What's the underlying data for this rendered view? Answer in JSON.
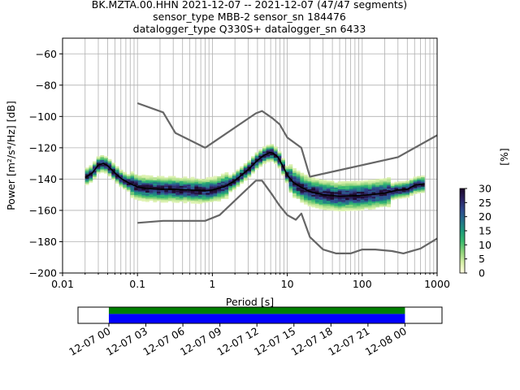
{
  "chart_data": [
    {
      "type": "heatmap",
      "title_lines": [
        "BK.MZTA.00.HHN   2021-12-07 -- 2021-12-07  (47/47 segments)",
        "sensor_type MBB-2 sensor_sn 184476",
        "datalogger_type Q330S+ datalogger_sn 6433"
      ],
      "xlabel": "Period [s]",
      "ylabel": "Power [m²/s⁴/Hz] [dB]",
      "xscale": "log",
      "xlim": [
        0.01,
        1000
      ],
      "ylim": [
        -200,
        -50
      ],
      "xticks": [
        {
          "value": 0.01,
          "label": "0.01"
        },
        {
          "value": 0.1,
          "label": "0.1"
        },
        {
          "value": 1,
          "label": "1"
        },
        {
          "value": 10,
          "label": "10"
        },
        {
          "value": 100,
          "label": "100"
        },
        {
          "value": 1000,
          "label": "1000"
        }
      ],
      "yticks": [
        {
          "value": -60,
          "label": "−60"
        },
        {
          "value": -80,
          "label": "−80"
        },
        {
          "value": -100,
          "label": "−100"
        },
        {
          "value": -120,
          "label": "−120"
        },
        {
          "value": -140,
          "label": "−140"
        },
        {
          "value": -160,
          "label": "−160"
        },
        {
          "value": -180,
          "label": "−180"
        },
        {
          "value": -200,
          "label": "−200"
        }
      ],
      "grid": true,
      "period_range": [
        0.02,
        680
      ],
      "nhnm": [
        [
          0.1,
          -168
        ],
        [
          0.22,
          -166.7
        ],
        [
          0.8,
          -166.7
        ],
        [
          1.25,
          -163
        ],
        [
          3.8,
          -141
        ],
        [
          4.6,
          -141
        ],
        [
          6.3,
          -150
        ],
        [
          7.9,
          -157
        ],
        [
          10,
          -163
        ],
        [
          13,
          -166
        ],
        [
          15.4,
          -162
        ],
        [
          20,
          -177
        ],
        [
          30,
          -185
        ],
        [
          45,
          -187.5
        ],
        [
          70,
          -187.5
        ],
        [
          100,
          -185
        ],
        [
          150,
          -185
        ],
        [
          250,
          -186
        ],
        [
          355,
          -187.5
        ],
        [
          600,
          -184.4
        ],
        [
          1000,
          -178
        ]
      ],
      "nlnm": [
        [
          0.1,
          -91.5
        ],
        [
          0.22,
          -97.4
        ],
        [
          0.32,
          -110.5
        ],
        [
          0.8,
          -120
        ],
        [
          3.8,
          -98
        ],
        [
          4.6,
          -96.5
        ],
        [
          6.3,
          -101
        ],
        [
          7.9,
          -105
        ],
        [
          10,
          -113.5
        ],
        [
          15.4,
          -120
        ],
        [
          20,
          -138.5
        ],
        [
          300,
          -126
        ],
        [
          1000,
          -112
        ]
      ],
      "mean": [
        [
          0.02,
          -139
        ],
        [
          0.025,
          -136
        ],
        [
          0.03,
          -131
        ],
        [
          0.035,
          -130
        ],
        [
          0.04,
          -131.5
        ],
        [
          0.05,
          -136
        ],
        [
          0.06,
          -139.5
        ],
        [
          0.08,
          -143
        ],
        [
          0.1,
          -145
        ],
        [
          0.13,
          -146
        ],
        [
          0.2,
          -146.5
        ],
        [
          0.3,
          -146.5
        ],
        [
          0.5,
          -147
        ],
        [
          0.8,
          -147.5
        ],
        [
          1.0,
          -147
        ],
        [
          1.5,
          -144.5
        ],
        [
          2.0,
          -141
        ],
        [
          3.0,
          -134
        ],
        [
          4.0,
          -128
        ],
        [
          5.0,
          -124.5
        ],
        [
          6.0,
          -123
        ],
        [
          6.5,
          -123.5
        ],
        [
          7.5,
          -126
        ],
        [
          9,
          -133
        ],
        [
          10,
          -137.5
        ],
        [
          12,
          -142
        ],
        [
          15,
          -145
        ],
        [
          20,
          -148
        ],
        [
          30,
          -150
        ],
        [
          50,
          -151
        ],
        [
          100,
          -150.5
        ],
        [
          200,
          -149
        ],
        [
          300,
          -147
        ],
        [
          400,
          -146.5
        ],
        [
          500,
          -144
        ],
        [
          680,
          -143
        ]
      ],
      "colorbar": {
        "label": "[%]",
        "min": 0,
        "max": 30,
        "ticks": [
          {
            "value": 0,
            "label": "0"
          },
          {
            "value": 5,
            "label": "5"
          },
          {
            "value": 10,
            "label": "10"
          },
          {
            "value": 15,
            "label": "15"
          },
          {
            "value": 20,
            "label": "20"
          },
          {
            "value": 25,
            "label": "25"
          },
          {
            "value": 30,
            "label": "30"
          }
        ],
        "colormap": [
          "#ffffe0",
          "#d4eea5",
          "#8ed27a",
          "#3aba6e",
          "#1e9a7a",
          "#24708a",
          "#2e4c8f",
          "#2d2566",
          "#1e0a2e"
        ]
      }
    },
    {
      "type": "timeline",
      "xlim": [
        "2021-12-06T21:30",
        "2021-12-08T03:00"
      ],
      "coverage": [
        "2021-12-07T00:00",
        "2021-12-08T00:00"
      ],
      "bar_colors": {
        "top": "#008000",
        "bottom": "#0000ff"
      },
      "xticks": [
        {
          "value": "2021-12-07T00:00",
          "label": "12-07 00"
        },
        {
          "value": "2021-12-07T03:00",
          "label": "12-07 03"
        },
        {
          "value": "2021-12-07T06:00",
          "label": "12-07 06"
        },
        {
          "value": "2021-12-07T09:00",
          "label": "12-07 09"
        },
        {
          "value": "2021-12-07T12:00",
          "label": "12-07 12"
        },
        {
          "value": "2021-12-07T15:00",
          "label": "12-07 15"
        },
        {
          "value": "2021-12-07T18:00",
          "label": "12-07 18"
        },
        {
          "value": "2021-12-07T21:00",
          "label": "12-07 21"
        },
        {
          "value": "2021-12-08T00:00",
          "label": "12-08 00"
        }
      ]
    }
  ]
}
